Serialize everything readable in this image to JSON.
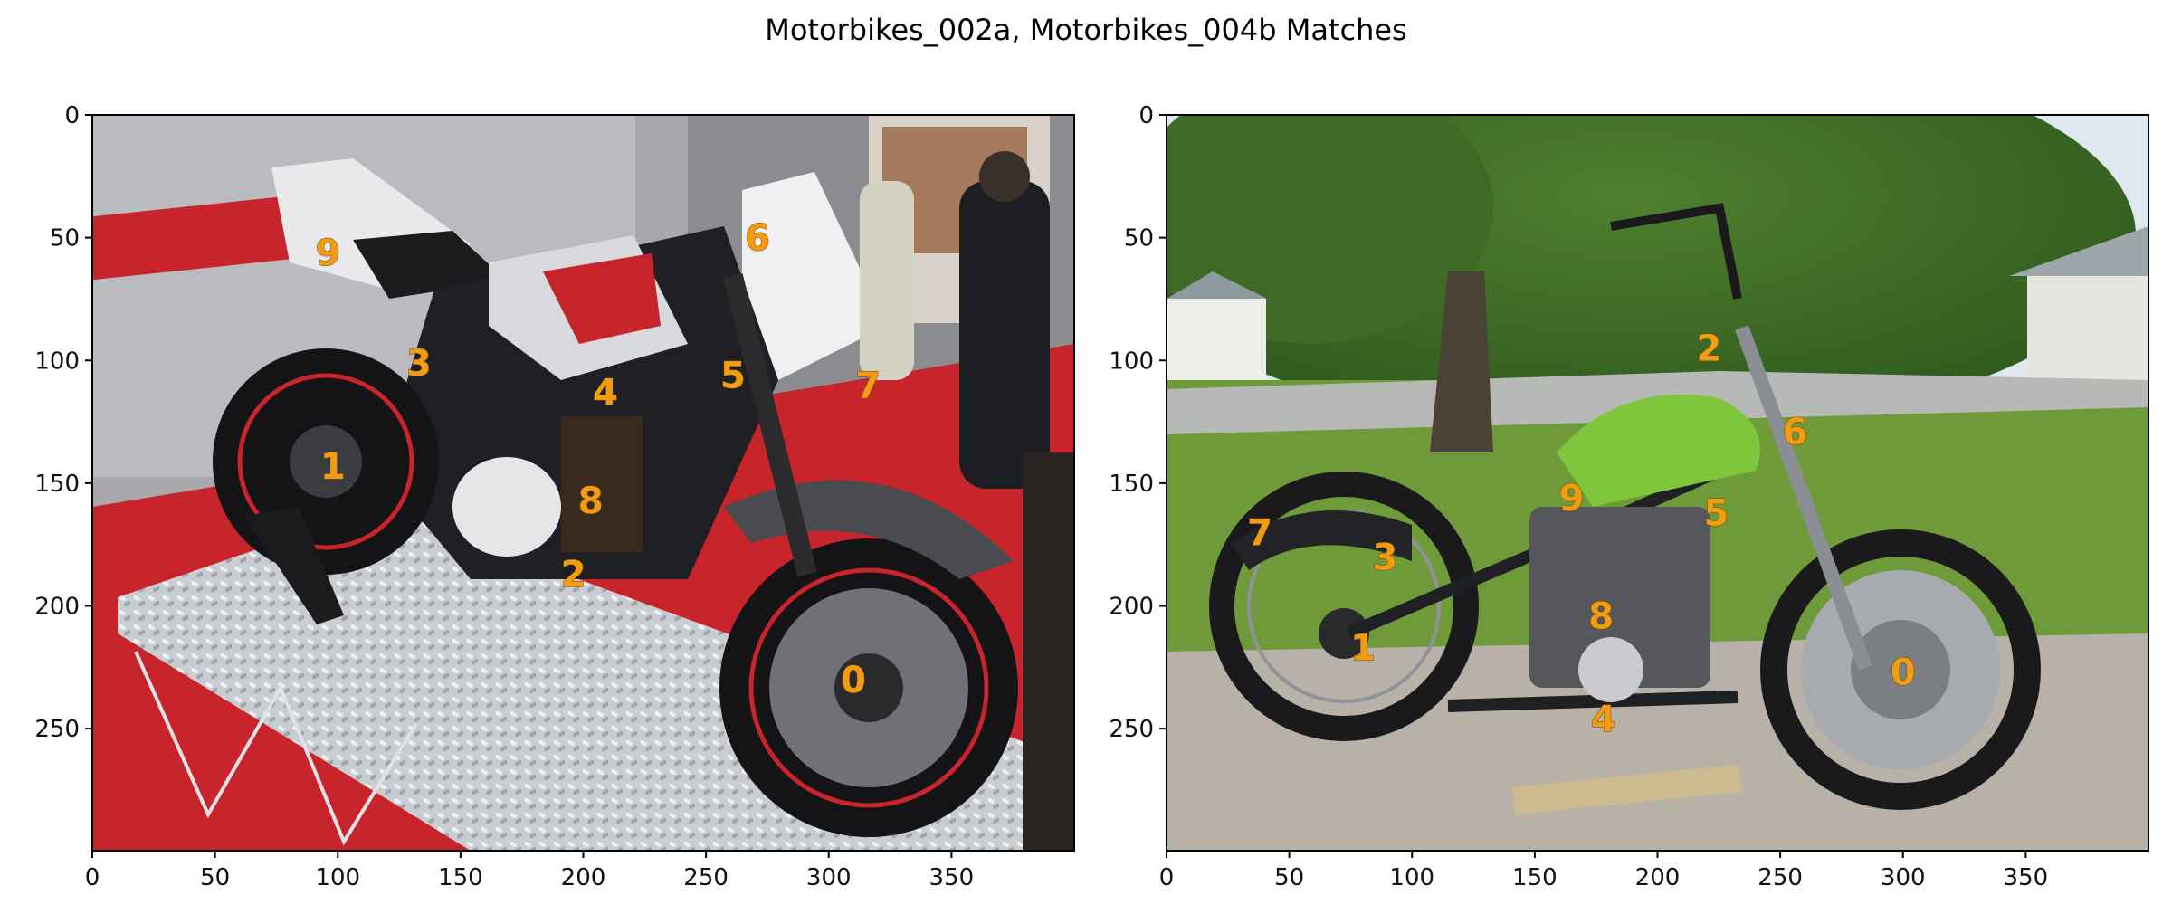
{
  "figure": {
    "title": "Motorbikes_002a, Motorbikes_004b Matches"
  },
  "left_panel": {
    "image_label": "motorbike on red exhibition stand with diamond-plate ramp",
    "x_ticks": [
      "0",
      "50",
      "100",
      "150",
      "200",
      "250",
      "300",
      "350"
    ],
    "y_ticks": [
      "0",
      "50",
      "100",
      "150",
      "200",
      "250"
    ],
    "keypoints": [
      {
        "id": "0",
        "x": 310,
        "y": 230
      },
      {
        "id": "1",
        "x": 98,
        "y": 143
      },
      {
        "id": "2",
        "x": 196,
        "y": 187
      },
      {
        "id": "3",
        "x": 133,
        "y": 101
      },
      {
        "id": "4",
        "x": 209,
        "y": 113
      },
      {
        "id": "5",
        "x": 261,
        "y": 106
      },
      {
        "id": "6",
        "x": 271,
        "y": 50
      },
      {
        "id": "7",
        "x": 316,
        "y": 110
      },
      {
        "id": "8",
        "x": 203,
        "y": 157
      },
      {
        "id": "9",
        "x": 96,
        "y": 56
      }
    ]
  },
  "right_panel": {
    "image_label": "stripped green-tank motorbike on driveway under tree",
    "x_ticks": [
      "0",
      "50",
      "100",
      "150",
      "200",
      "250",
      "300",
      "350"
    ],
    "y_ticks": [
      "0",
      "50",
      "100",
      "150",
      "200",
      "250"
    ],
    "keypoints": [
      {
        "id": "0",
        "x": 300,
        "y": 227
      },
      {
        "id": "1",
        "x": 80,
        "y": 217
      },
      {
        "id": "2",
        "x": 221,
        "y": 95
      },
      {
        "id": "3",
        "x": 89,
        "y": 180
      },
      {
        "id": "4",
        "x": 178,
        "y": 246
      },
      {
        "id": "5",
        "x": 224,
        "y": 162
      },
      {
        "id": "6",
        "x": 256,
        "y": 129
      },
      {
        "id": "7",
        "x": 38,
        "y": 170
      },
      {
        "id": "8",
        "x": 177,
        "y": 204
      },
      {
        "id": "9",
        "x": 165,
        "y": 156
      }
    ]
  },
  "colors": {
    "keypoint": "#f39c12",
    "left_floor_red": "#c8242b",
    "right_grass": "#6f9a3a",
    "tank_green": "#7fc63c"
  }
}
